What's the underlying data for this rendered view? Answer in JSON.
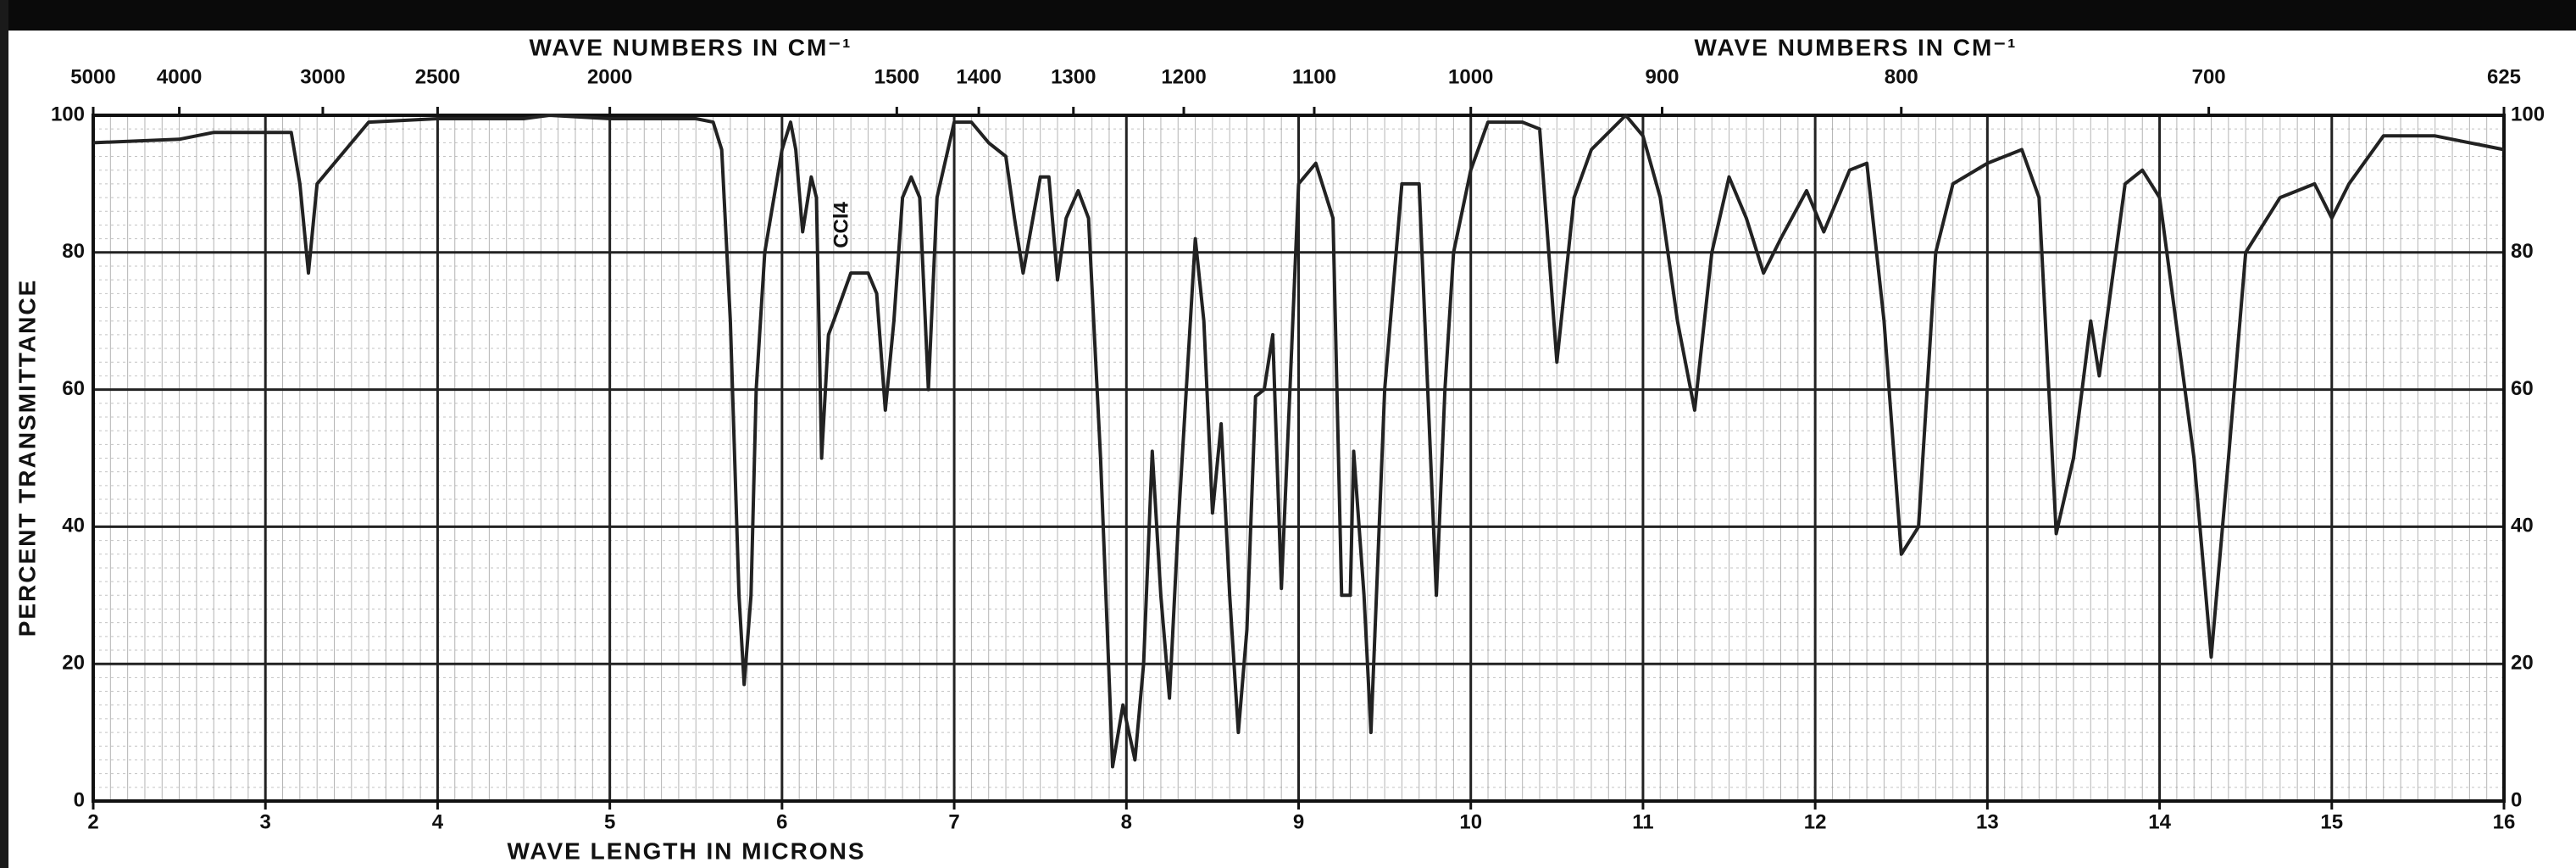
{
  "chart_data": {
    "type": "line",
    "xlabel": "WAVE LENGTH IN MICRONS",
    "ylabel": "PERCENT TRANSMITTANCE",
    "x2label": "WAVE NUMBERS IN CM⁻¹",
    "annotation": "CCl4",
    "xlim": [
      2,
      16
    ],
    "xticks": [
      2,
      3,
      4,
      5,
      6,
      7,
      8,
      9,
      10,
      11,
      12,
      13,
      14,
      15,
      16
    ],
    "ylim": [
      0,
      100
    ],
    "yticks": [
      0,
      20,
      40,
      60,
      80,
      100
    ],
    "x2ticks": [
      5000,
      4000,
      3000,
      2500,
      2000,
      1500,
      1400,
      1300,
      1200,
      1100,
      1000,
      900,
      800,
      700,
      625
    ],
    "grid": true,
    "color": "#222222",
    "x": [
      2.0,
      2.5,
      2.7,
      3.0,
      3.15,
      3.2,
      3.25,
      3.3,
      3.4,
      3.6,
      4.0,
      4.5,
      4.65,
      5.0,
      5.5,
      5.6,
      5.65,
      5.7,
      5.75,
      5.78,
      5.82,
      5.85,
      5.9,
      6.0,
      6.05,
      6.08,
      6.12,
      6.17,
      6.2,
      6.23,
      6.27,
      6.3,
      6.4,
      6.5,
      6.55,
      6.6,
      6.65,
      6.7,
      6.75,
      6.8,
      6.85,
      6.9,
      7.0,
      7.1,
      7.2,
      7.3,
      7.35,
      7.4,
      7.5,
      7.55,
      7.6,
      7.65,
      7.72,
      7.78,
      7.85,
      7.92,
      7.98,
      8.05,
      8.1,
      8.15,
      8.2,
      8.25,
      8.3,
      8.4,
      8.45,
      8.5,
      8.55,
      8.6,
      8.65,
      8.7,
      8.75,
      8.8,
      8.85,
      8.9,
      8.95,
      9.0,
      9.1,
      9.2,
      9.25,
      9.3,
      9.32,
      9.38,
      9.42,
      9.5,
      9.6,
      9.7,
      9.75,
      9.8,
      9.85,
      9.9,
      10.0,
      10.1,
      10.3,
      10.4,
      10.5,
      10.6,
      10.7,
      10.9,
      11.0,
      11.1,
      11.2,
      11.3,
      11.4,
      11.5,
      11.6,
      11.7,
      11.8,
      11.95,
      12.05,
      12.2,
      12.3,
      12.4,
      12.5,
      12.6,
      12.7,
      12.8,
      13.0,
      13.2,
      13.3,
      13.4,
      13.5,
      13.6,
      13.65,
      13.8,
      13.9,
      14.0,
      14.2,
      14.3,
      14.4,
      14.5,
      14.7,
      14.9,
      15.0,
      15.1,
      15.3,
      15.6,
      15.8,
      16.0
    ],
    "values": [
      96,
      96.5,
      97.5,
      97.5,
      97.5,
      90,
      77,
      90,
      93,
      99,
      99.5,
      99.5,
      100,
      99.5,
      99.5,
      99,
      95,
      70,
      30,
      17,
      30,
      60,
      80,
      95,
      99,
      95,
      83,
      91,
      88,
      50,
      68,
      70,
      77,
      77,
      74,
      57,
      70,
      88,
      91,
      88,
      60,
      88,
      99,
      99,
      96,
      94,
      85,
      77,
      91,
      91,
      76,
      85,
      89,
      85,
      50,
      5,
      14,
      6,
      20,
      51,
      30,
      15,
      40,
      82,
      70,
      42,
      55,
      30,
      10,
      25,
      59,
      60,
      68,
      31,
      60,
      90,
      93,
      85,
      30,
      30,
      51,
      30,
      10,
      60,
      90,
      90,
      60,
      30,
      60,
      80,
      92,
      99,
      99,
      98,
      64,
      88,
      95,
      100,
      97,
      88,
      70,
      57,
      80,
      91,
      85,
      77,
      82,
      89,
      83,
      92,
      93,
      70,
      36,
      40,
      80,
      90,
      93,
      95,
      88,
      39,
      50,
      70,
      62,
      90,
      92,
      88,
      50,
      21,
      50,
      80,
      88,
      90,
      85,
      90,
      97,
      97,
      96,
      95
    ]
  }
}
